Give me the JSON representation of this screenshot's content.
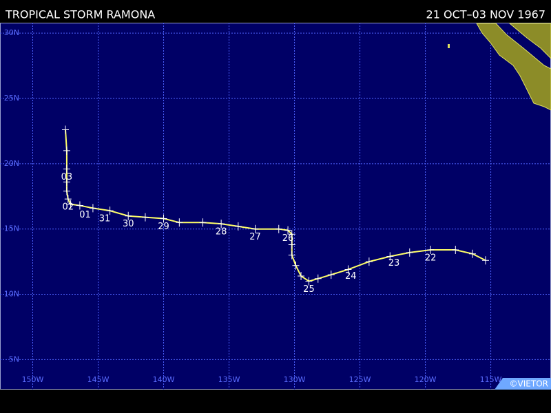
{
  "header": {
    "title": "TROPICAL STORM RAMONA",
    "dates": "21 OCT–03 NOV 1967"
  },
  "map": {
    "extent": {
      "lon": [
        -152.5,
        -110.4
      ],
      "lat": [
        2.7,
        30.8
      ]
    },
    "meridians": [
      {
        "value": -150,
        "label": "150W"
      },
      {
        "value": -145,
        "label": "145W"
      },
      {
        "value": -140,
        "label": "140W"
      },
      {
        "value": -135,
        "label": "135W"
      },
      {
        "value": -130,
        "label": "130W"
      },
      {
        "value": -125,
        "label": "125W"
      },
      {
        "value": -120,
        "label": "120W"
      },
      {
        "value": -115,
        "label": "115W"
      }
    ],
    "parallels": [
      {
        "value": 30,
        "label": "30N"
      },
      {
        "value": 25,
        "label": "25N"
      },
      {
        "value": 20,
        "label": "20N"
      },
      {
        "value": 15,
        "label": "15N"
      },
      {
        "value": 10,
        "label": "10N"
      },
      {
        "value": 5,
        "label": "5N"
      }
    ],
    "track": {
      "color": "#ffff66",
      "points": [
        [
          -115.4,
          12.6
        ],
        [
          -116.4,
          13.1
        ],
        [
          -117.7,
          13.4
        ],
        [
          -119.6,
          13.4
        ],
        [
          -121.2,
          13.2
        ],
        [
          -122.7,
          12.9
        ],
        [
          -124.3,
          12.5
        ],
        [
          -125.9,
          11.9
        ],
        [
          -127.2,
          11.5
        ],
        [
          -128.2,
          11.2
        ],
        [
          -128.9,
          11.0
        ],
        [
          -129.5,
          11.4
        ],
        [
          -129.9,
          12.2
        ],
        [
          -130.2,
          13.0
        ],
        [
          -130.2,
          13.8
        ],
        [
          -130.2,
          14.6
        ],
        [
          -130.5,
          14.9
        ],
        [
          -131.2,
          15.0
        ],
        [
          -133.0,
          15.0
        ],
        [
          -134.3,
          15.2
        ],
        [
          -135.6,
          15.4
        ],
        [
          -137.0,
          15.5
        ],
        [
          -138.8,
          15.5
        ],
        [
          -140.0,
          15.8
        ],
        [
          -141.4,
          15.9
        ],
        [
          -142.7,
          16.0
        ],
        [
          -144.1,
          16.4
        ],
        [
          -145.4,
          16.6
        ],
        [
          -146.4,
          16.8
        ],
        [
          -147.1,
          16.9
        ],
        [
          -147.3,
          17.3
        ],
        [
          -147.4,
          17.9
        ],
        [
          -147.4,
          18.6
        ],
        [
          -147.4,
          19.6
        ],
        [
          -147.4,
          21.0
        ],
        [
          -147.5,
          22.6
        ]
      ]
    },
    "day_labels": [
      {
        "label": "22",
        "lon": -119.6,
        "lat": 13.4
      },
      {
        "label": "23",
        "lon": -122.4,
        "lat": 13.0
      },
      {
        "label": "24",
        "lon": -125.7,
        "lat": 12.0
      },
      {
        "label": "25",
        "lon": -128.9,
        "lat": 11.0
      },
      {
        "label": "26",
        "lon": -130.5,
        "lat": 14.9
      },
      {
        "label": "27",
        "lon": -133.0,
        "lat": 15.0
      },
      {
        "label": "28",
        "lon": -135.6,
        "lat": 15.4
      },
      {
        "label": "29",
        "lon": -140.0,
        "lat": 15.8
      },
      {
        "label": "30",
        "lon": -142.7,
        "lat": 16.0
      },
      {
        "label": "31",
        "lon": -144.5,
        "lat": 16.4
      },
      {
        "label": "01",
        "lon": -146.0,
        "lat": 16.7
      },
      {
        "label": "02",
        "lon": -147.3,
        "lat": 17.3
      },
      {
        "label": "03",
        "lon": -147.4,
        "lat": 19.6
      }
    ]
  },
  "footer": {
    "credit": "©VIETOR"
  }
}
